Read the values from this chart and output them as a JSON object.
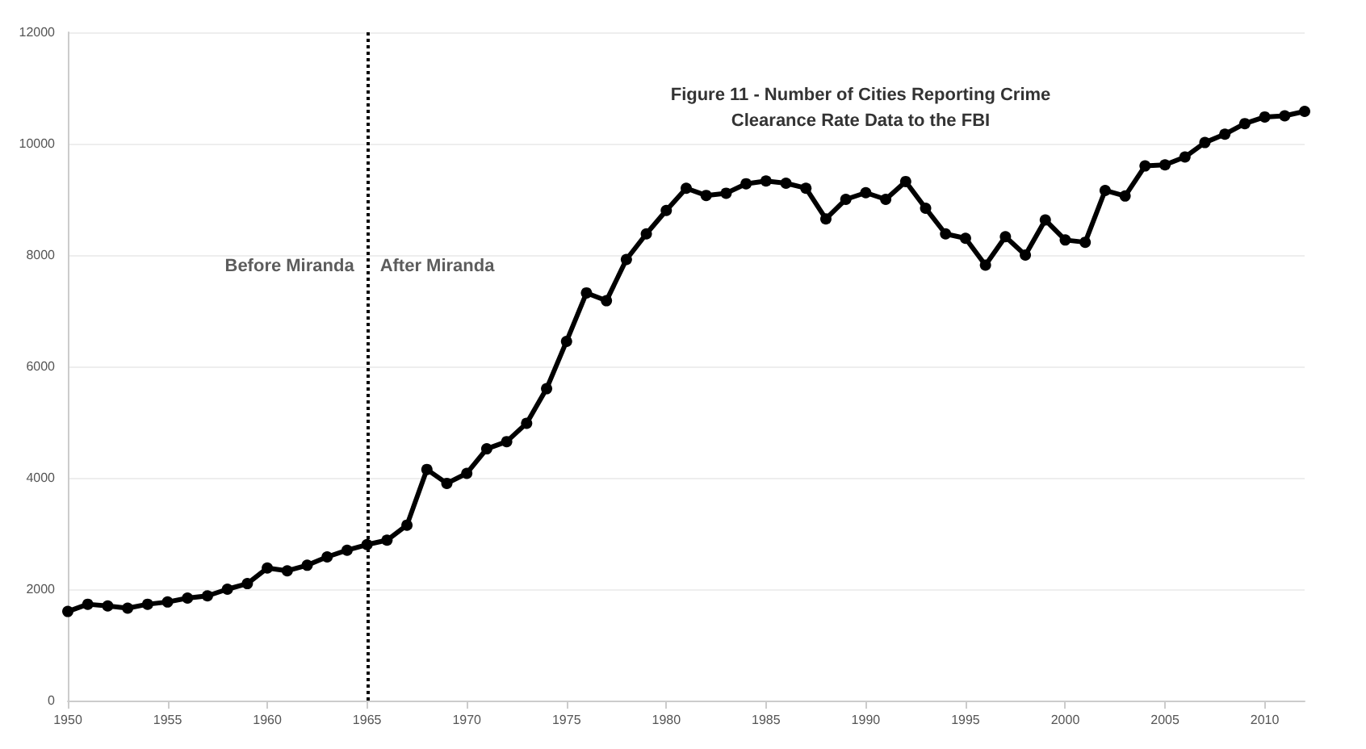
{
  "chart_data": {
    "type": "line",
    "title": "Figure 11 - Number of Cities Reporting Crime\nClearance Rate Data to the FBI",
    "x": [
      1950,
      1951,
      1952,
      1953,
      1954,
      1955,
      1956,
      1957,
      1958,
      1959,
      1960,
      1961,
      1962,
      1963,
      1964,
      1965,
      1966,
      1967,
      1968,
      1969,
      1970,
      1971,
      1972,
      1973,
      1974,
      1975,
      1976,
      1977,
      1978,
      1979,
      1980,
      1981,
      1982,
      1983,
      1984,
      1985,
      1986,
      1987,
      1988,
      1989,
      1990,
      1991,
      1992,
      1993,
      1994,
      1995,
      1996,
      1997,
      1998,
      1999,
      2000,
      2001,
      2002,
      2003,
      2004,
      2005,
      2006,
      2007,
      2008,
      2009,
      2010,
      2011,
      2012
    ],
    "series": [
      {
        "color": "#000000",
        "values": [
          1600,
          1730,
          1700,
          1660,
          1730,
          1770,
          1840,
          1880,
          2000,
          2100,
          2380,
          2330,
          2430,
          2580,
          2700,
          2800,
          2880,
          3150,
          4150,
          3900,
          4080,
          4520,
          4650,
          4980,
          5600,
          6450,
          7320,
          7180,
          7920,
          8380,
          8800,
          9200,
          9070,
          9110,
          9280,
          9330,
          9290,
          9200,
          8650,
          9000,
          9120,
          9000,
          9320,
          8840,
          8380,
          8300,
          7820,
          8330,
          8000,
          8630,
          8270,
          8230,
          9160,
          9060,
          9600,
          9620,
          9760,
          10020,
          10170,
          10360,
          10480,
          10500,
          10580
        ]
      }
    ],
    "xlim": [
      1950,
      2012
    ],
    "xticks": [
      1950,
      1955,
      1960,
      1965,
      1970,
      1975,
      1980,
      1985,
      1990,
      1995,
      2000,
      2005,
      2010
    ],
    "ylim": [
      0,
      12000
    ],
    "yticks": [
      0,
      2000,
      4000,
      6000,
      8000,
      10000,
      12000
    ],
    "ref_lines": [
      {
        "axis": "x",
        "value": 1965,
        "line_style": "dotted",
        "color": "#000000"
      }
    ],
    "annotations": [
      {
        "text": "Before Miranda",
        "x": 1965,
        "y": 7800
      },
      {
        "text": "After Miranda",
        "x": 1965,
        "y": 7800
      }
    ],
    "grid": "y",
    "marker": "circle",
    "line_style": "solid"
  }
}
